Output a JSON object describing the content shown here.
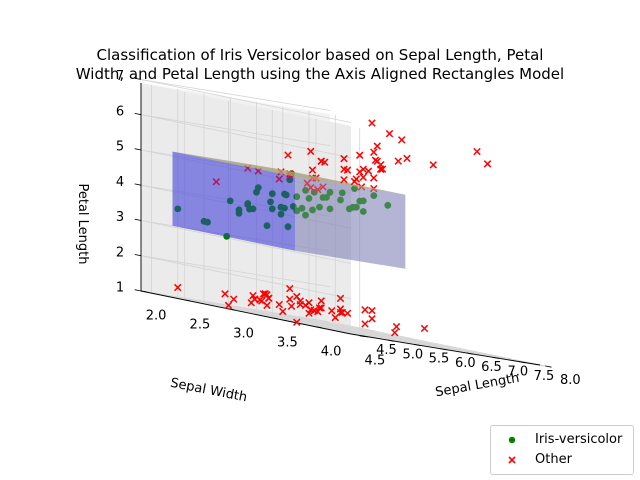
{
  "chart_data": {
    "type": "scatter",
    "title_line1": "Classification of Iris Versicolor based on Sepal Length, Petal",
    "title_line2": "Width, and Petal Length using the Axis Aligned Rectangles Model",
    "xlabel": "Sepal Length",
    "ylabel": "Sepal Width",
    "zlabel": "Petal Length",
    "xticks": [
      "4.5",
      "5.0",
      "5.5",
      "6.0",
      "6.5",
      "7.0",
      "7.5",
      "8.0"
    ],
    "yticks": [
      "4.5",
      "4.0",
      "3.5",
      "3.0",
      "2.5",
      "2.0"
    ],
    "zticks": [
      "1",
      "2",
      "3",
      "4",
      "5",
      "6",
      "7"
    ],
    "xlim": [
      4.3,
      7.9
    ],
    "ylim": [
      2.0,
      4.4
    ],
    "zlim": [
      1.0,
      6.9
    ],
    "grid": true,
    "legend_position": "bottom-right",
    "rectangle": {
      "sepal_length": [
        4.9,
        7.0
      ],
      "sepal_width": [
        2.0,
        3.4
      ],
      "petal_length": [
        3.0,
        5.1
      ],
      "color": "#3b3bd9"
    },
    "series": [
      {
        "name": "Iris-versicolor",
        "marker": "circle",
        "color": "#008000",
        "points": [
          [
            7.0,
            3.2,
            4.7
          ],
          [
            6.4,
            3.2,
            4.5
          ],
          [
            6.9,
            3.1,
            4.9
          ],
          [
            5.5,
            2.3,
            4.0
          ],
          [
            6.5,
            2.8,
            4.6
          ],
          [
            5.7,
            2.8,
            4.5
          ],
          [
            6.3,
            3.3,
            4.7
          ],
          [
            4.9,
            2.4,
            3.3
          ],
          [
            6.6,
            2.9,
            4.6
          ],
          [
            5.2,
            2.7,
            3.9
          ],
          [
            5.0,
            2.0,
            3.5
          ],
          [
            5.9,
            3.0,
            4.2
          ],
          [
            6.0,
            2.2,
            4.0
          ],
          [
            6.1,
            2.9,
            4.7
          ],
          [
            5.6,
            2.9,
            3.6
          ],
          [
            6.7,
            3.1,
            4.4
          ],
          [
            5.6,
            3.0,
            4.5
          ],
          [
            5.8,
            2.7,
            4.1
          ],
          [
            6.2,
            2.2,
            4.5
          ],
          [
            5.6,
            2.5,
            3.9
          ],
          [
            5.9,
            3.2,
            4.8
          ],
          [
            6.1,
            2.8,
            4.0
          ],
          [
            6.3,
            2.5,
            4.9
          ],
          [
            6.1,
            2.8,
            4.7
          ],
          [
            6.4,
            2.9,
            4.3
          ],
          [
            6.6,
            3.0,
            4.4
          ],
          [
            6.8,
            2.8,
            4.8
          ],
          [
            6.7,
            3.0,
            5.0
          ],
          [
            6.0,
            2.9,
            4.5
          ],
          [
            5.7,
            2.6,
            3.5
          ],
          [
            5.5,
            2.4,
            3.8
          ],
          [
            5.5,
            2.4,
            3.7
          ],
          [
            5.8,
            2.7,
            3.9
          ],
          [
            6.0,
            2.7,
            5.1
          ],
          [
            5.4,
            3.0,
            4.5
          ],
          [
            6.0,
            3.4,
            4.5
          ],
          [
            6.7,
            3.1,
            4.7
          ],
          [
            6.3,
            2.3,
            4.4
          ],
          [
            5.6,
            3.0,
            4.1
          ],
          [
            5.5,
            2.5,
            4.0
          ],
          [
            5.5,
            2.6,
            4.4
          ],
          [
            6.1,
            3.0,
            4.6
          ],
          [
            5.8,
            2.6,
            4.0
          ],
          [
            5.0,
            2.3,
            3.3
          ],
          [
            5.6,
            2.7,
            4.2
          ],
          [
            5.7,
            3.0,
            4.2
          ],
          [
            5.7,
            2.9,
            4.2
          ],
          [
            6.2,
            2.9,
            4.3
          ],
          [
            5.1,
            2.5,
            3.0
          ],
          [
            5.7,
            2.8,
            4.1
          ]
        ]
      },
      {
        "name": "Other",
        "marker": "x",
        "color": "#ff0000",
        "points": [
          [
            5.1,
            3.5,
            1.4
          ],
          [
            4.9,
            3.0,
            1.4
          ],
          [
            4.7,
            3.2,
            1.3
          ],
          [
            4.6,
            3.1,
            1.5
          ],
          [
            5.0,
            3.6,
            1.4
          ],
          [
            5.4,
            3.9,
            1.7
          ],
          [
            4.6,
            3.4,
            1.4
          ],
          [
            5.0,
            3.4,
            1.5
          ],
          [
            4.4,
            2.9,
            1.4
          ],
          [
            4.9,
            3.1,
            1.5
          ],
          [
            5.4,
            3.7,
            1.5
          ],
          [
            4.8,
            3.4,
            1.6
          ],
          [
            4.8,
            3.0,
            1.4
          ],
          [
            4.3,
            3.0,
            1.1
          ],
          [
            5.8,
            4.0,
            1.2
          ],
          [
            5.7,
            4.4,
            1.5
          ],
          [
            5.4,
            3.9,
            1.3
          ],
          [
            5.1,
            3.5,
            1.4
          ],
          [
            5.7,
            3.8,
            1.7
          ],
          [
            5.1,
            3.8,
            1.5
          ],
          [
            5.4,
            3.4,
            1.7
          ],
          [
            5.1,
            3.7,
            1.5
          ],
          [
            4.6,
            3.6,
            1.0
          ],
          [
            5.1,
            3.3,
            1.7
          ],
          [
            4.8,
            3.4,
            1.9
          ],
          [
            5.0,
            3.0,
            1.6
          ],
          [
            5.0,
            3.4,
            1.6
          ],
          [
            5.2,
            3.5,
            1.5
          ],
          [
            5.2,
            3.4,
            1.4
          ],
          [
            4.7,
            3.2,
            1.6
          ],
          [
            4.8,
            3.1,
            1.6
          ],
          [
            5.4,
            3.4,
            1.5
          ],
          [
            5.2,
            4.1,
            1.5
          ],
          [
            5.5,
            4.2,
            1.4
          ],
          [
            4.9,
            3.1,
            1.5
          ],
          [
            5.0,
            3.2,
            1.2
          ],
          [
            5.5,
            3.5,
            1.3
          ],
          [
            4.4,
            3.0,
            1.3
          ],
          [
            5.1,
            3.4,
            1.5
          ],
          [
            5.0,
            3.5,
            1.3
          ],
          [
            4.5,
            2.3,
            1.3
          ],
          [
            4.4,
            3.2,
            1.3
          ],
          [
            5.0,
            3.5,
            1.6
          ],
          [
            5.1,
            3.8,
            1.9
          ],
          [
            4.8,
            3.0,
            1.4
          ],
          [
            5.1,
            3.8,
            1.6
          ],
          [
            4.6,
            3.2,
            1.4
          ],
          [
            5.3,
            3.7,
            1.5
          ],
          [
            5.0,
            3.3,
            1.4
          ],
          [
            6.3,
            3.3,
            6.0
          ],
          [
            5.8,
            2.7,
            5.1
          ],
          [
            7.1,
            3.0,
            5.9
          ],
          [
            6.3,
            2.9,
            5.6
          ],
          [
            6.5,
            3.0,
            5.8
          ],
          [
            7.6,
            3.0,
            6.6
          ],
          [
            4.9,
            2.5,
            4.5
          ],
          [
            7.3,
            2.9,
            6.3
          ],
          [
            6.7,
            2.5,
            5.8
          ],
          [
            7.2,
            3.6,
            6.1
          ],
          [
            6.5,
            3.2,
            5.1
          ],
          [
            6.4,
            2.7,
            5.3
          ],
          [
            6.8,
            3.0,
            5.5
          ],
          [
            5.7,
            2.5,
            5.0
          ],
          [
            5.8,
            2.8,
            5.1
          ],
          [
            6.4,
            3.2,
            5.3
          ],
          [
            6.5,
            3.0,
            5.5
          ],
          [
            7.7,
            3.8,
            6.7
          ],
          [
            7.7,
            2.6,
            6.9
          ],
          [
            6.0,
            2.2,
            5.0
          ],
          [
            6.9,
            3.2,
            5.7
          ],
          [
            5.6,
            2.8,
            4.9
          ],
          [
            7.7,
            2.8,
            6.7
          ],
          [
            6.3,
            2.7,
            4.9
          ],
          [
            6.7,
            3.3,
            5.7
          ],
          [
            7.2,
            3.2,
            6.0
          ],
          [
            6.2,
            2.8,
            4.8
          ],
          [
            6.1,
            3.0,
            4.9
          ],
          [
            6.4,
            2.8,
            5.6
          ],
          [
            7.2,
            3.0,
            5.8
          ],
          [
            7.4,
            2.8,
            6.1
          ],
          [
            7.9,
            3.8,
            6.4
          ],
          [
            6.4,
            2.8,
            5.6
          ],
          [
            6.3,
            2.8,
            5.1
          ],
          [
            6.1,
            2.6,
            5.6
          ],
          [
            7.7,
            3.0,
            6.1
          ],
          [
            6.3,
            3.4,
            5.6
          ],
          [
            6.4,
            3.1,
            5.5
          ],
          [
            6.0,
            3.0,
            4.8
          ],
          [
            6.9,
            3.1,
            5.4
          ],
          [
            6.7,
            3.1,
            5.6
          ],
          [
            6.9,
            3.1,
            5.1
          ],
          [
            6.8,
            3.2,
            5.9
          ],
          [
            6.7,
            3.3,
            5.7
          ],
          [
            6.7,
            3.0,
            5.2
          ],
          [
            6.3,
            2.5,
            5.0
          ],
          [
            6.5,
            3.0,
            5.2
          ],
          [
            6.2,
            3.4,
            5.4
          ],
          [
            5.9,
            3.0,
            5.1
          ]
        ]
      }
    ]
  }
}
